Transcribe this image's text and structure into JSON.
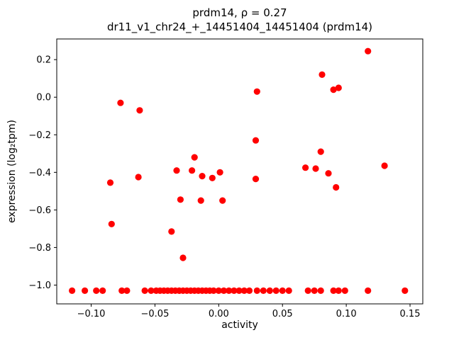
{
  "figure": {
    "background": "#ffffff"
  },
  "chart_data": {
    "type": "scatter",
    "title": "prdm14, ρ = 0.27",
    "subtitle": "dr11_v1_chr24_+_14451404_14451404 (prdm14)",
    "xlabel": "activity",
    "ylabel": "expression (log₂tpm)",
    "xlim": [
      -0.127,
      0.16
    ],
    "ylim": [
      -1.1,
      0.31
    ],
    "xticks": [
      -0.1,
      -0.05,
      0.0,
      0.05,
      0.1,
      0.15
    ],
    "xtick_labels": [
      "−0.10",
      "−0.05",
      "0.00",
      "0.05",
      "0.10",
      "0.15"
    ],
    "yticks": [
      0.2,
      0.0,
      -0.2,
      -0.4,
      -0.6,
      -0.8,
      -1.0
    ],
    "ytick_labels": [
      "0.2",
      "0.0",
      "−0.2",
      "−0.4",
      "−0.6",
      "−0.8",
      "−1.0"
    ],
    "marker_color": "#ff0000",
    "frame_color": "#000000",
    "grid": false,
    "legend": "none",
    "floor_value": -1.03,
    "points": [
      [
        -0.077,
        -0.03
      ],
      [
        -0.062,
        -0.07
      ],
      [
        -0.085,
        -0.455
      ],
      [
        -0.084,
        -0.675
      ],
      [
        -0.063,
        -0.425
      ],
      [
        -0.033,
        -0.39
      ],
      [
        -0.037,
        -0.715
      ],
      [
        -0.03,
        -0.545
      ],
      [
        -0.028,
        -0.855
      ],
      [
        -0.019,
        -0.32
      ],
      [
        -0.021,
        -0.39
      ],
      [
        -0.013,
        -0.42
      ],
      [
        -0.014,
        -0.55
      ],
      [
        -0.005,
        -0.43
      ],
      [
        0.001,
        -0.4
      ],
      [
        0.003,
        -0.55
      ],
      [
        0.03,
        0.03
      ],
      [
        0.029,
        -0.23
      ],
      [
        0.029,
        -0.435
      ],
      [
        0.068,
        -0.375
      ],
      [
        0.076,
        -0.38
      ],
      [
        0.081,
        0.12
      ],
      [
        0.08,
        -0.29
      ],
      [
        0.086,
        -0.405
      ],
      [
        0.09,
        0.04
      ],
      [
        0.094,
        0.05
      ],
      [
        0.092,
        -0.48
      ],
      [
        0.117,
        0.245
      ],
      [
        0.13,
        -0.365
      ],
      [
        -0.115,
        -1.03
      ],
      [
        -0.105,
        -1.03
      ],
      [
        -0.096,
        -1.03
      ],
      [
        -0.091,
        -1.03
      ],
      [
        -0.076,
        -1.03
      ],
      [
        -0.072,
        -1.03
      ],
      [
        -0.058,
        -1.03
      ],
      [
        -0.053,
        -1.03
      ],
      [
        -0.049,
        -1.03
      ],
      [
        -0.046,
        -1.03
      ],
      [
        -0.043,
        -1.03
      ],
      [
        -0.04,
        -1.03
      ],
      [
        -0.037,
        -1.03
      ],
      [
        -0.034,
        -1.03
      ],
      [
        -0.031,
        -1.03
      ],
      [
        -0.028,
        -1.03
      ],
      [
        -0.025,
        -1.03
      ],
      [
        -0.022,
        -1.03
      ],
      [
        -0.019,
        -1.03
      ],
      [
        -0.016,
        -1.03
      ],
      [
        -0.013,
        -1.03
      ],
      [
        -0.01,
        -1.03
      ],
      [
        -0.007,
        -1.03
      ],
      [
        -0.004,
        -1.03
      ],
      [
        0.0,
        -1.03
      ],
      [
        0.004,
        -1.03
      ],
      [
        0.008,
        -1.03
      ],
      [
        0.012,
        -1.03
      ],
      [
        0.016,
        -1.03
      ],
      [
        0.02,
        -1.03
      ],
      [
        0.024,
        -1.03
      ],
      [
        0.03,
        -1.03
      ],
      [
        0.035,
        -1.03
      ],
      [
        0.04,
        -1.03
      ],
      [
        0.045,
        -1.03
      ],
      [
        0.05,
        -1.03
      ],
      [
        0.055,
        -1.03
      ],
      [
        0.07,
        -1.03
      ],
      [
        0.075,
        -1.03
      ],
      [
        0.08,
        -1.03
      ],
      [
        0.09,
        -1.03
      ],
      [
        0.094,
        -1.03
      ],
      [
        0.099,
        -1.03
      ],
      [
        0.117,
        -1.03
      ],
      [
        0.146,
        -1.03
      ]
    ]
  }
}
